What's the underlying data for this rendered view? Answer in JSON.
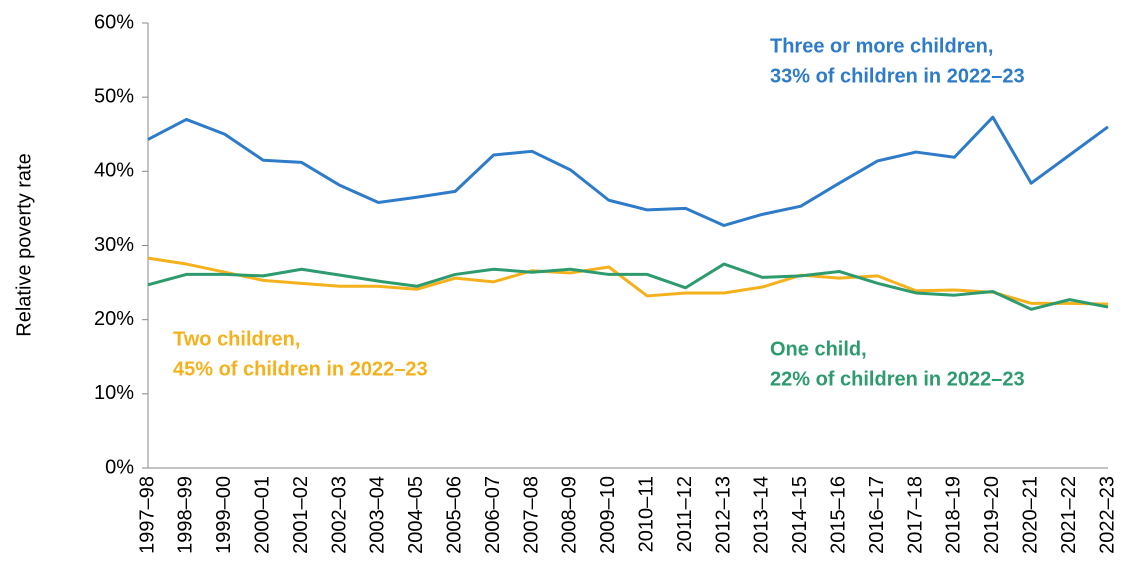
{
  "chart_data": {
    "type": "line",
    "y_label": "Relative poverty rate",
    "categories": [
      "1997–98",
      "1998–99",
      "1999–00",
      "2000–01",
      "2001–02",
      "2002–03",
      "2003–04",
      "2004–05",
      "2005–06",
      "2006–07",
      "2007–08",
      "2008–09",
      "2009–10",
      "2010–11",
      "2011–12",
      "2012–13",
      "2013–14",
      "2014–15",
      "2015–16",
      "2016–17",
      "2017–18",
      "2018–19",
      "2019–20",
      "2020–21",
      "2021–22",
      "2022–23"
    ],
    "series": [
      {
        "name": "Three or more children,",
        "annotation": "33% of children in 2022–23",
        "color": "#2e7bc9",
        "values": [
          44.3,
          47.0,
          45.0,
          41.5,
          41.2,
          38.1,
          35.8,
          36.5,
          37.3,
          42.2,
          42.7,
          40.2,
          36.1,
          34.8,
          35.0,
          32.7,
          34.2,
          35.3,
          38.4,
          41.4,
          42.6,
          41.9,
          47.3,
          38.4,
          42.2,
          46.0
        ]
      },
      {
        "name": "Two children,",
        "annotation": "45% of children in 2022–23",
        "color": "#f4b11b",
        "values": [
          28.3,
          27.5,
          26.4,
          25.3,
          24.9,
          24.5,
          24.5,
          24.1,
          25.6,
          25.1,
          26.6,
          26.3,
          27.1,
          23.2,
          23.6,
          23.6,
          24.4,
          26.0,
          25.6,
          25.9,
          23.9,
          24.0,
          23.7,
          22.2,
          22.2,
          22.1
        ]
      },
      {
        "name": "One child,",
        "annotation": "22% of children in 2022–23",
        "color": "#2e9b6e",
        "values": [
          24.7,
          26.1,
          26.1,
          25.9,
          26.8,
          26.0,
          25.2,
          24.5,
          26.1,
          26.8,
          26.4,
          26.8,
          26.1,
          26.1,
          24.3,
          27.5,
          25.7,
          25.9,
          26.5,
          24.9,
          23.6,
          23.3,
          23.8,
          21.4,
          22.7,
          21.7
        ]
      }
    ],
    "ylim": [
      0,
      60
    ],
    "yticks": [
      {
        "value": 0,
        "label": "0%"
      },
      {
        "value": 10,
        "label": "10%"
      },
      {
        "value": 20,
        "label": "20%"
      },
      {
        "value": 30,
        "label": "30%"
      },
      {
        "value": 40,
        "label": "40%"
      },
      {
        "value": 50,
        "label": "50%"
      },
      {
        "value": 60,
        "label": "60%"
      }
    ],
    "grid": false
  }
}
